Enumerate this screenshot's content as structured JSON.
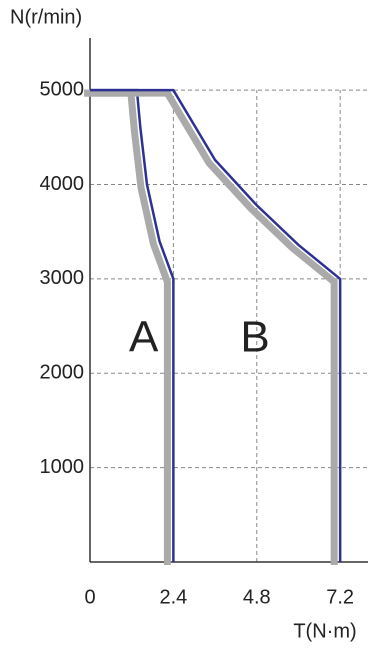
{
  "chart_data": {
    "type": "line",
    "y_label": "N(r/min)",
    "x_label": "T(N·m)",
    "xlim": [
      0,
      7.8
    ],
    "ylim": [
      0,
      5500
    ],
    "xticks": [
      0,
      2.4,
      4.8,
      7.2
    ],
    "yticks": [
      1000,
      2000,
      3000,
      4000,
      5000
    ],
    "grid": true,
    "shadow_color": "#aaaaaa",
    "series": [
      {
        "name": "A",
        "color": "#2e3192",
        "x": [
          0,
          1.35,
          1.45,
          1.64,
          2.0,
          2.4,
          2.4
        ],
        "values": [
          5000,
          5000,
          4600,
          4000,
          3400,
          3000,
          0
        ]
      },
      {
        "name": "B",
        "color": "#2e3192",
        "x": [
          0,
          2.4,
          3.6,
          4.8,
          6.0,
          7.2,
          7.2
        ],
        "values": [
          5000,
          5000,
          4260,
          3780,
          3360,
          3000,
          0
        ]
      }
    ]
  }
}
